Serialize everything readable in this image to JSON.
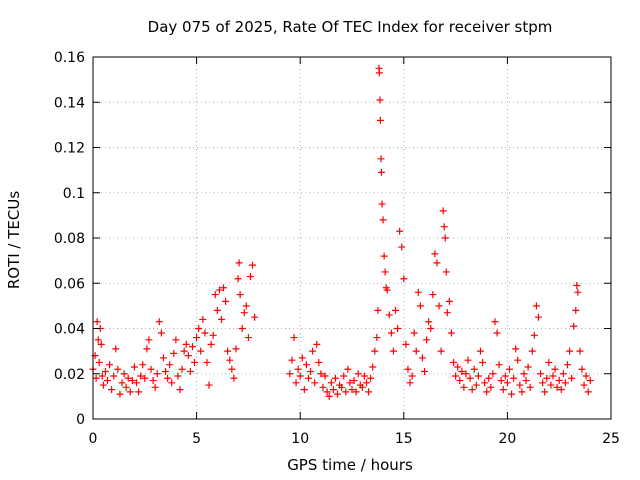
{
  "chart_data": {
    "type": "scatter",
    "title": "Day 075 of 2025, Rate Of TEC Index for receiver stpm",
    "xlabel": "GPS time / hours",
    "ylabel": "ROTI / TECUs",
    "xlim": [
      0,
      25
    ],
    "ylim": [
      0,
      0.16
    ],
    "xticks": [
      0,
      5,
      10,
      15,
      20,
      25
    ],
    "xtick_labels": [
      "0",
      "5",
      "10",
      "15",
      "20",
      "25"
    ],
    "yticks": [
      0,
      0.02,
      0.04,
      0.06,
      0.08,
      0.1,
      0.12,
      0.14,
      0.16
    ],
    "ytick_labels": [
      "0",
      "0.02",
      "0.04",
      "0.06",
      "0.08",
      "0.1",
      "0.12",
      "0.14",
      "0.16"
    ],
    "grid": true,
    "marker": "+",
    "marker_color": "#ff0000",
    "series": [
      {
        "name": "ROTI",
        "points": [
          [
            0.0,
            0.022
          ],
          [
            0.1,
            0.028
          ],
          [
            0.15,
            0.018
          ],
          [
            0.2,
            0.043
          ],
          [
            0.25,
            0.035
          ],
          [
            0.3,
            0.025
          ],
          [
            0.35,
            0.04
          ],
          [
            0.4,
            0.033
          ],
          [
            0.45,
            0.019
          ],
          [
            0.5,
            0.015
          ],
          [
            0.6,
            0.021
          ],
          [
            0.7,
            0.017
          ],
          [
            0.8,
            0.024
          ],
          [
            0.9,
            0.013
          ],
          [
            1.0,
            0.019
          ],
          [
            1.1,
            0.031
          ],
          [
            1.2,
            0.022
          ],
          [
            1.3,
            0.011
          ],
          [
            1.4,
            0.016
          ],
          [
            1.5,
            0.02
          ],
          [
            1.6,
            0.014
          ],
          [
            1.7,
            0.018
          ],
          [
            1.8,
            0.012
          ],
          [
            1.9,
            0.017
          ],
          [
            2.0,
            0.023
          ],
          [
            2.1,
            0.016
          ],
          [
            2.2,
            0.012
          ],
          [
            2.3,
            0.019
          ],
          [
            2.4,
            0.024
          ],
          [
            2.5,
            0.018
          ],
          [
            2.6,
            0.031
          ],
          [
            2.7,
            0.035
          ],
          [
            2.8,
            0.022
          ],
          [
            2.9,
            0.017
          ],
          [
            3.0,
            0.014
          ],
          [
            3.1,
            0.02
          ],
          [
            3.2,
            0.043
          ],
          [
            3.3,
            0.038
          ],
          [
            3.4,
            0.027
          ],
          [
            3.5,
            0.021
          ],
          [
            3.6,
            0.018
          ],
          [
            3.7,
            0.024
          ],
          [
            3.8,
            0.016
          ],
          [
            3.9,
            0.029
          ],
          [
            4.0,
            0.035
          ],
          [
            4.1,
            0.019
          ],
          [
            4.2,
            0.013
          ],
          [
            4.3,
            0.022
          ],
          [
            4.4,
            0.03
          ],
          [
            4.5,
            0.033
          ],
          [
            4.6,
            0.028
          ],
          [
            4.7,
            0.021
          ],
          [
            4.8,
            0.032
          ],
          [
            4.9,
            0.025
          ],
          [
            5.0,
            0.036
          ],
          [
            5.1,
            0.04
          ],
          [
            5.2,
            0.03
          ],
          [
            5.3,
            0.044
          ],
          [
            5.4,
            0.038
          ],
          [
            5.5,
            0.025
          ],
          [
            5.6,
            0.015
          ],
          [
            5.7,
            0.033
          ],
          [
            5.8,
            0.037
          ],
          [
            5.9,
            0.055
          ],
          [
            6.0,
            0.048
          ],
          [
            6.1,
            0.057
          ],
          [
            6.2,
            0.044
          ],
          [
            6.3,
            0.058
          ],
          [
            6.4,
            0.052
          ],
          [
            6.5,
            0.03
          ],
          [
            6.6,
            0.026
          ],
          [
            6.7,
            0.022
          ],
          [
            6.8,
            0.018
          ],
          [
            6.9,
            0.031
          ],
          [
            7.0,
            0.062
          ],
          [
            7.05,
            0.069
          ],
          [
            7.1,
            0.055
          ],
          [
            7.2,
            0.04
          ],
          [
            7.3,
            0.047
          ],
          [
            7.4,
            0.05
          ],
          [
            7.5,
            0.036
          ],
          [
            7.6,
            0.063
          ],
          [
            7.7,
            0.068
          ],
          [
            7.8,
            0.045
          ],
          [
            9.5,
            0.02
          ],
          [
            9.6,
            0.026
          ],
          [
            9.7,
            0.036
          ],
          [
            9.8,
            0.016
          ],
          [
            9.9,
            0.022
          ],
          [
            10.0,
            0.019
          ],
          [
            10.1,
            0.027
          ],
          [
            10.2,
            0.013
          ],
          [
            10.3,
            0.024
          ],
          [
            10.4,
            0.018
          ],
          [
            10.5,
            0.021
          ],
          [
            10.6,
            0.03
          ],
          [
            10.7,
            0.016
          ],
          [
            10.8,
            0.033
          ],
          [
            10.9,
            0.025
          ],
          [
            11.0,
            0.02
          ],
          [
            11.1,
            0.014
          ],
          [
            11.2,
            0.019
          ],
          [
            11.3,
            0.012
          ],
          [
            11.4,
            0.01
          ],
          [
            11.5,
            0.016
          ],
          [
            11.6,
            0.013
          ],
          [
            11.7,
            0.018
          ],
          [
            11.8,
            0.011
          ],
          [
            11.9,
            0.015
          ],
          [
            12.0,
            0.014
          ],
          [
            12.1,
            0.019
          ],
          [
            12.2,
            0.012
          ],
          [
            12.3,
            0.022
          ],
          [
            12.4,
            0.016
          ],
          [
            12.5,
            0.013
          ],
          [
            12.6,
            0.017
          ],
          [
            12.7,
            0.012
          ],
          [
            12.8,
            0.02
          ],
          [
            12.9,
            0.015
          ],
          [
            13.0,
            0.014
          ],
          [
            13.1,
            0.019
          ],
          [
            13.2,
            0.016
          ],
          [
            13.3,
            0.012
          ],
          [
            13.4,
            0.018
          ],
          [
            13.5,
            0.023
          ],
          [
            13.6,
            0.03
          ],
          [
            13.7,
            0.036
          ],
          [
            13.75,
            0.048
          ],
          [
            13.8,
            0.155
          ],
          [
            13.82,
            0.153
          ],
          [
            13.85,
            0.141
          ],
          [
            13.87,
            0.132
          ],
          [
            13.9,
            0.115
          ],
          [
            13.92,
            0.109
          ],
          [
            13.95,
            0.095
          ],
          [
            14.0,
            0.088
          ],
          [
            14.05,
            0.072
          ],
          [
            14.1,
            0.065
          ],
          [
            14.15,
            0.058
          ],
          [
            14.2,
            0.057
          ],
          [
            14.3,
            0.046
          ],
          [
            14.4,
            0.038
          ],
          [
            14.5,
            0.03
          ],
          [
            14.6,
            0.048
          ],
          [
            14.7,
            0.04
          ],
          [
            14.8,
            0.083
          ],
          [
            14.9,
            0.076
          ],
          [
            15.0,
            0.062
          ],
          [
            15.1,
            0.033
          ],
          [
            15.2,
            0.022
          ],
          [
            15.3,
            0.016
          ],
          [
            15.4,
            0.019
          ],
          [
            15.5,
            0.038
          ],
          [
            15.6,
            0.03
          ],
          [
            15.7,
            0.056
          ],
          [
            15.8,
            0.05
          ],
          [
            15.9,
            0.027
          ],
          [
            16.0,
            0.021
          ],
          [
            16.1,
            0.035
          ],
          [
            16.2,
            0.043
          ],
          [
            16.3,
            0.04
          ],
          [
            16.4,
            0.055
          ],
          [
            16.5,
            0.073
          ],
          [
            16.6,
            0.069
          ],
          [
            16.7,
            0.05
          ],
          [
            16.8,
            0.03
          ],
          [
            16.9,
            0.092
          ],
          [
            16.95,
            0.085
          ],
          [
            17.0,
            0.08
          ],
          [
            17.05,
            0.065
          ],
          [
            17.1,
            0.047
          ],
          [
            17.2,
            0.052
          ],
          [
            17.3,
            0.038
          ],
          [
            17.4,
            0.025
          ],
          [
            17.5,
            0.019
          ],
          [
            17.6,
            0.023
          ],
          [
            17.7,
            0.017
          ],
          [
            17.8,
            0.021
          ],
          [
            17.9,
            0.014
          ],
          [
            18.0,
            0.02
          ],
          [
            18.1,
            0.026
          ],
          [
            18.2,
            0.018
          ],
          [
            18.3,
            0.013
          ],
          [
            18.4,
            0.022
          ],
          [
            18.5,
            0.015
          ],
          [
            18.6,
            0.019
          ],
          [
            18.7,
            0.03
          ],
          [
            18.8,
            0.025
          ],
          [
            18.9,
            0.016
          ],
          [
            19.0,
            0.012
          ],
          [
            19.1,
            0.018
          ],
          [
            19.2,
            0.014
          ],
          [
            19.3,
            0.02
          ],
          [
            19.4,
            0.043
          ],
          [
            19.5,
            0.038
          ],
          [
            19.6,
            0.024
          ],
          [
            19.7,
            0.017
          ],
          [
            19.8,
            0.013
          ],
          [
            19.9,
            0.019
          ],
          [
            20.0,
            0.016
          ],
          [
            20.1,
            0.022
          ],
          [
            20.2,
            0.011
          ],
          [
            20.3,
            0.018
          ],
          [
            20.4,
            0.031
          ],
          [
            20.5,
            0.026
          ],
          [
            20.6,
            0.015
          ],
          [
            20.7,
            0.012
          ],
          [
            20.8,
            0.02
          ],
          [
            20.9,
            0.017
          ],
          [
            21.0,
            0.023
          ],
          [
            21.1,
            0.014
          ],
          [
            21.2,
            0.03
          ],
          [
            21.3,
            0.037
          ],
          [
            21.4,
            0.05
          ],
          [
            21.5,
            0.045
          ],
          [
            21.6,
            0.02
          ],
          [
            21.7,
            0.016
          ],
          [
            21.8,
            0.012
          ],
          [
            21.9,
            0.018
          ],
          [
            22.0,
            0.025
          ],
          [
            22.1,
            0.015
          ],
          [
            22.2,
            0.019
          ],
          [
            22.3,
            0.022
          ],
          [
            22.4,
            0.014
          ],
          [
            22.5,
            0.017
          ],
          [
            22.6,
            0.013
          ],
          [
            22.7,
            0.02
          ],
          [
            22.8,
            0.016
          ],
          [
            22.9,
            0.024
          ],
          [
            23.0,
            0.03
          ],
          [
            23.1,
            0.018
          ],
          [
            23.2,
            0.041
          ],
          [
            23.3,
            0.048
          ],
          [
            23.35,
            0.059
          ],
          [
            23.4,
            0.056
          ],
          [
            23.5,
            0.03
          ],
          [
            23.6,
            0.022
          ],
          [
            23.7,
            0.015
          ],
          [
            23.8,
            0.019
          ],
          [
            23.9,
            0.012
          ],
          [
            24.0,
            0.017
          ]
        ]
      }
    ]
  }
}
